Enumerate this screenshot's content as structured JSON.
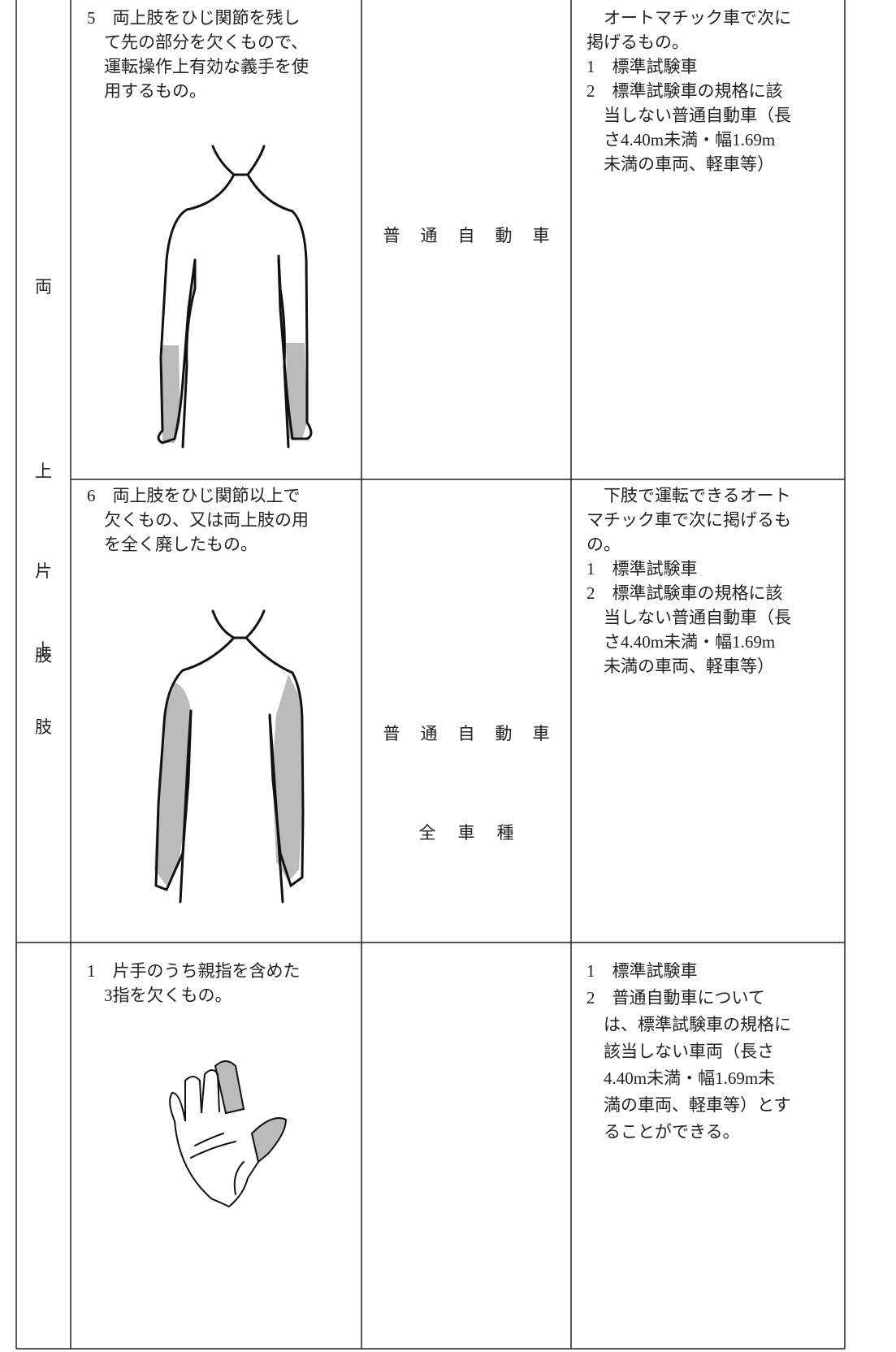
{
  "category_1": [
    "両",
    "上",
    "肢"
  ],
  "category_2": [
    "片",
    "上",
    "肢"
  ],
  "rows": [
    {
      "condition": [
        "5　両上肢をひじ関節を残し",
        "　て先の部分を欠くもので、",
        "　運転操作上有効な義手を使",
        "　用するもの。"
      ],
      "vehicle": "普通自動車",
      "requirement": [
        "　オートマチック車で次に",
        "掲げるもの。",
        "1　標準試験車",
        "2　標準試験車の規格に該",
        "　当しない普通自動車（長",
        "　さ4.40m未満・幅1.69m",
        "　未満の車両、軽車等）"
      ]
    },
    {
      "condition": [
        "6　両上肢をひじ関節以上で",
        "　欠くもの、又は両上肢の用",
        "　を全く廃したもの。"
      ],
      "vehicle": "普通自動車",
      "requirement": [
        "　下肢で運転できるオート",
        "マチック車で次に掲げるも",
        "の。",
        "1　標準試験車",
        "2　標準試験車の規格に該",
        "　当しない普通自動車（長",
        "　さ4.40m未満・幅1.69m",
        "　未満の車両、軽車等）"
      ]
    },
    {
      "condition": [
        "1　片手のうち親指を含めた",
        "　3指を欠くもの。"
      ],
      "vehicle": "全車種",
      "requirement": [
        "1　標準試験車",
        "2　普通自動車について",
        "　は、標準試験車の規格に",
        "　該当しない車両（長さ",
        "　4.40m未満・幅1.69m未",
        "　満の車両、軽車等）とす",
        "　ることができる。"
      ]
    }
  ]
}
